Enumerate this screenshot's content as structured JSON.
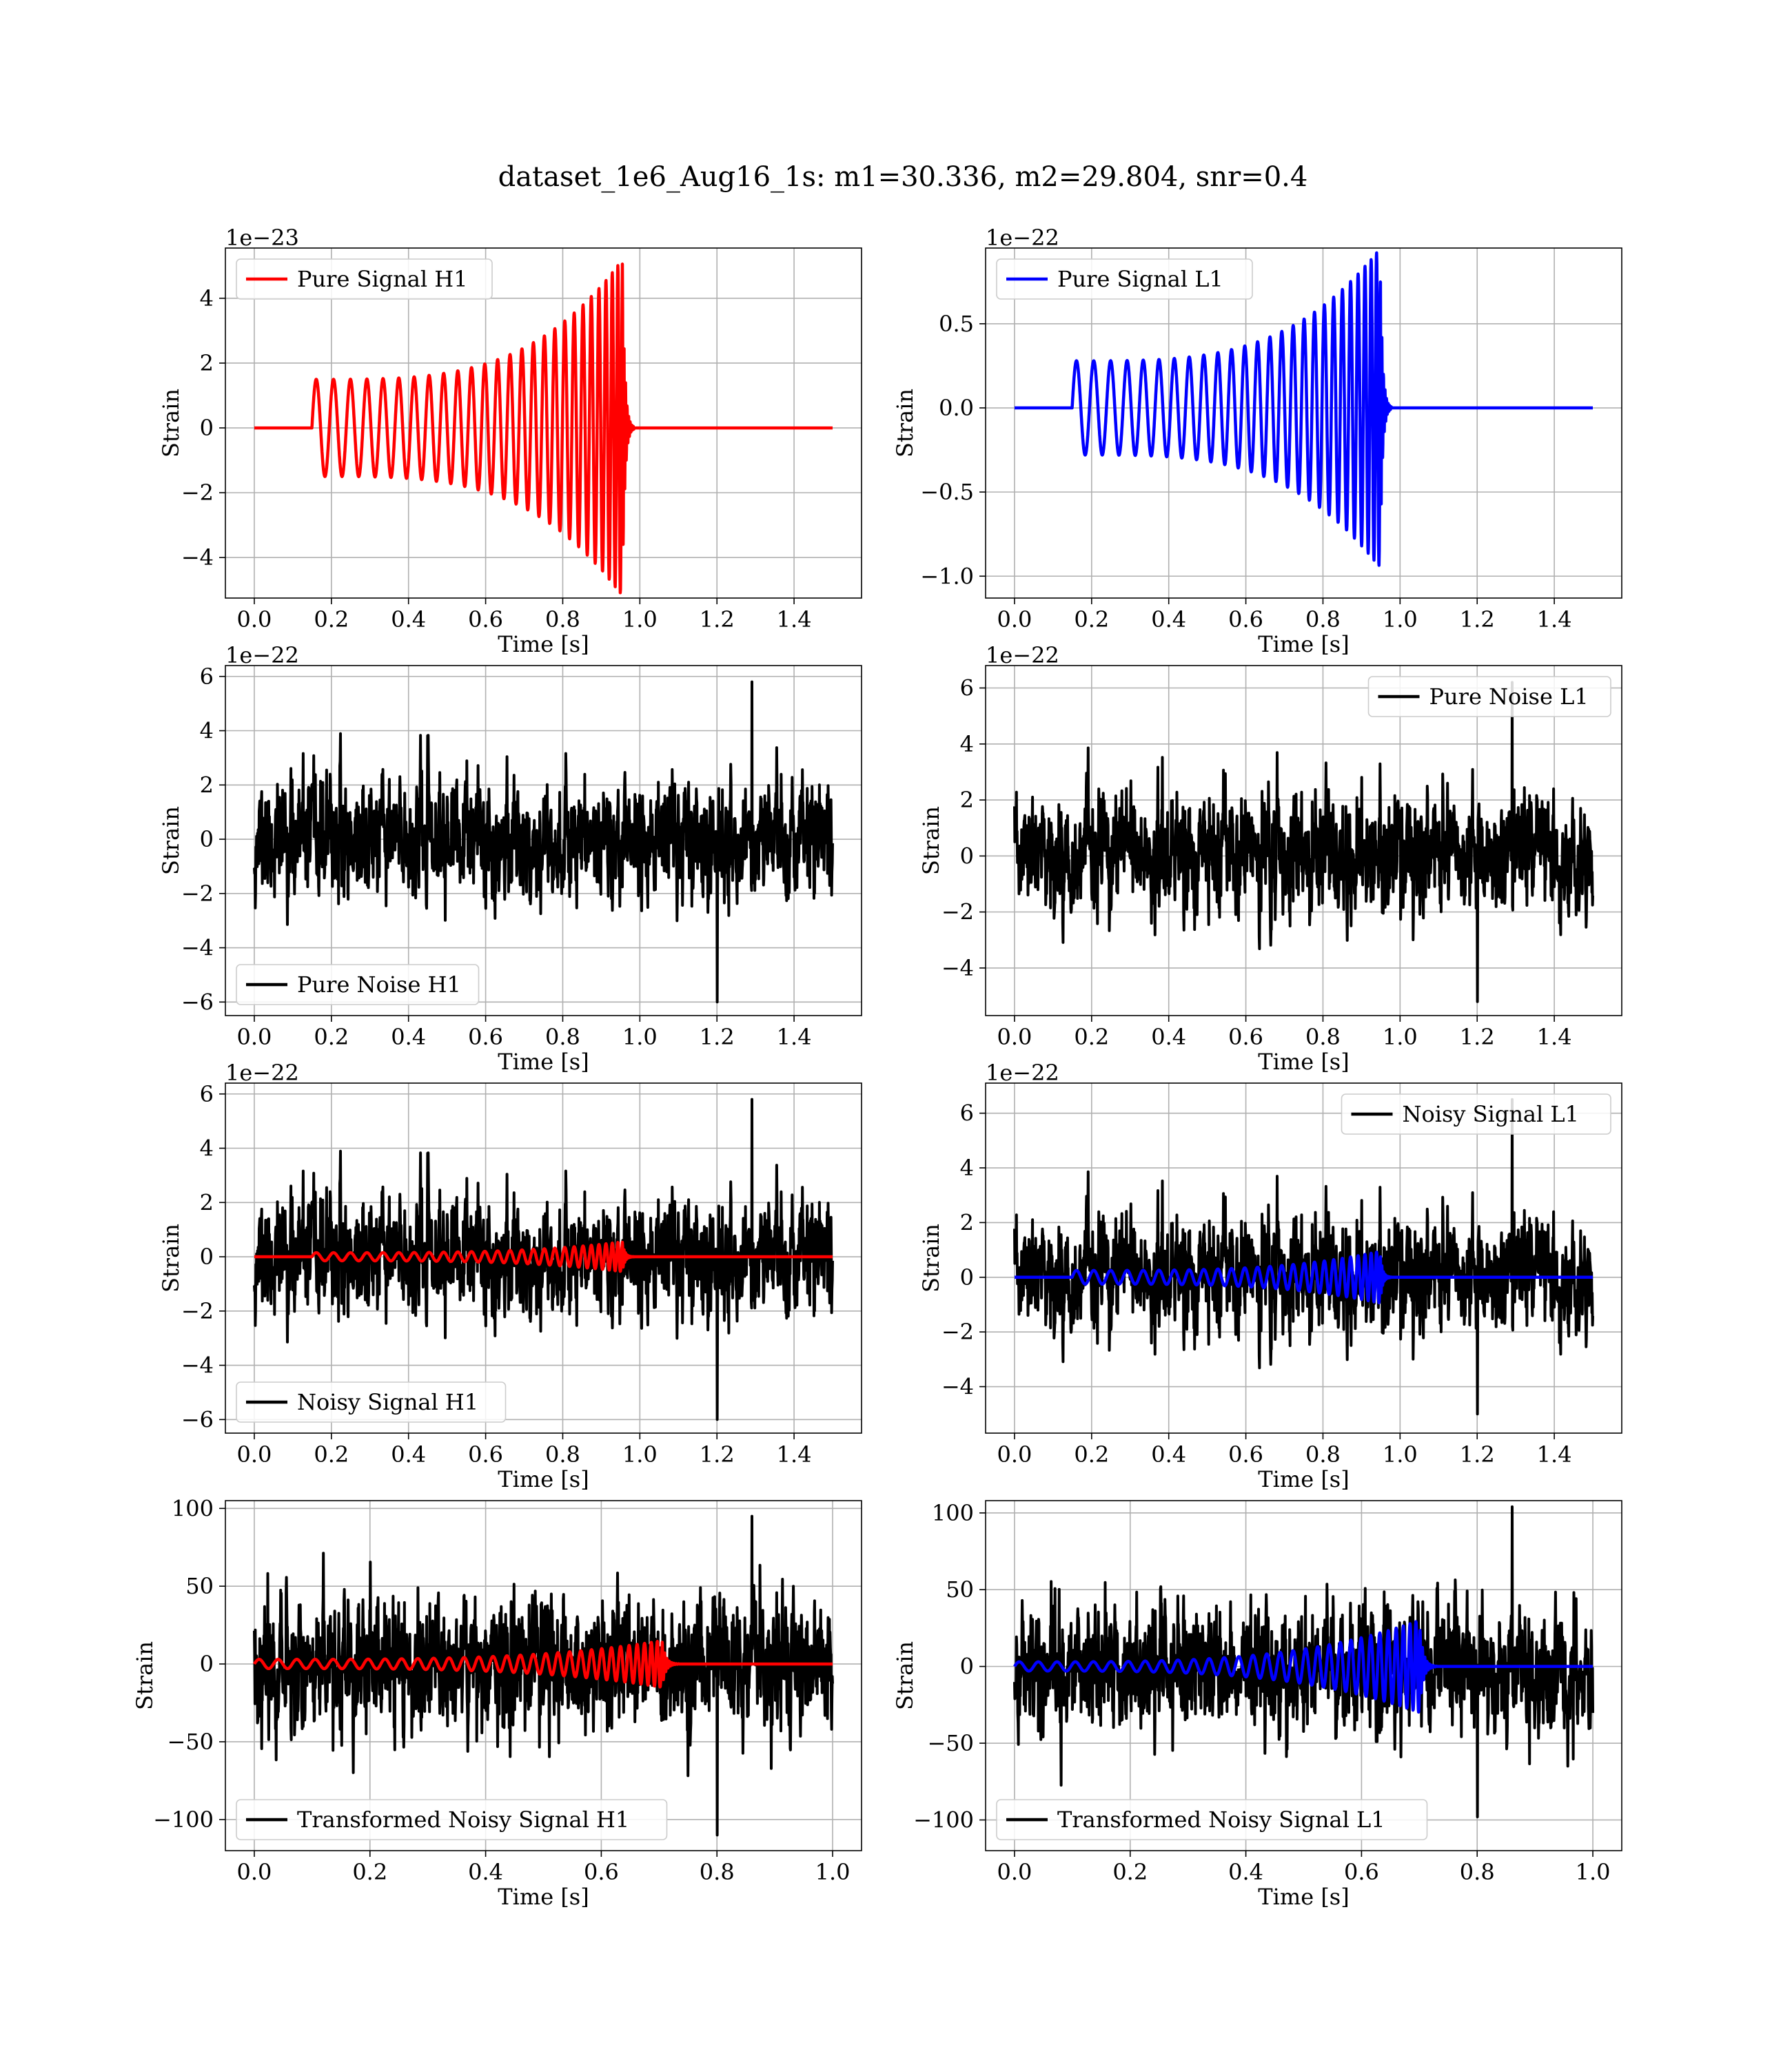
{
  "figure": {
    "suptitle": "dataset_1e6_Aug16_1s: m1=30.336, m2=29.804, snr=0.4"
  },
  "colors": {
    "h1": "#ff0000",
    "l1": "#0000ff",
    "noise": "#000000",
    "grid": "#b0b0b0"
  },
  "chart_data": [
    {
      "id": "pure-signal-h1",
      "type": "line",
      "xlabel": "Time [s]",
      "ylabel": "Strain",
      "offset_text": "1e−23",
      "xlim": [
        -0.075,
        1.575
      ],
      "ylim": [
        -5.25,
        5.55
      ],
      "xticks": [
        0.0,
        0.2,
        0.4,
        0.6,
        0.8,
        1.0,
        1.2,
        1.4
      ],
      "xtick_labels": [
        "0.0",
        "0.2",
        "0.4",
        "0.6",
        "0.8",
        "1.0",
        "1.2",
        "1.4"
      ],
      "yticks": [
        -4,
        -2,
        0,
        2,
        4
      ],
      "ytick_labels": [
        "−4",
        "−2",
        "0",
        "2",
        "4"
      ],
      "grid": true,
      "legend_position": "upper-left",
      "series": [
        {
          "name": "Pure Signal H1",
          "color": "#ff0000",
          "kind": "chirp",
          "start": 0.15,
          "merger": 0.955,
          "end": 1.5,
          "duration": 1.5,
          "amp_start": 1.5,
          "amp_peak": 5.2,
          "freq_start": 22,
          "legend": true
        }
      ]
    },
    {
      "id": "pure-signal-l1",
      "type": "line",
      "xlabel": "Time [s]",
      "ylabel": "Strain",
      "offset_text": "1e−22",
      "xlim": [
        -0.075,
        1.575
      ],
      "ylim": [
        -1.13,
        0.95
      ],
      "xticks": [
        0.0,
        0.2,
        0.4,
        0.6,
        0.8,
        1.0,
        1.2,
        1.4
      ],
      "xtick_labels": [
        "0.0",
        "0.2",
        "0.4",
        "0.6",
        "0.8",
        "1.0",
        "1.2",
        "1.4"
      ],
      "yticks": [
        -1.0,
        -0.5,
        0.0,
        0.5
      ],
      "ytick_labels": [
        "−1.0",
        "−0.5",
        "0.0",
        "0.5"
      ],
      "grid": true,
      "legend_position": "upper-left",
      "series": [
        {
          "name": "Pure Signal L1",
          "color": "#0000ff",
          "kind": "chirp",
          "start": 0.15,
          "merger": 0.948,
          "end": 1.5,
          "duration": 1.5,
          "amp_start": 0.28,
          "amp_peak": 0.95,
          "freq_start": 22,
          "legend": true
        }
      ]
    },
    {
      "id": "pure-noise-h1",
      "type": "line",
      "xlabel": "Time [s]",
      "ylabel": "Strain",
      "offset_text": "1e−22",
      "xlim": [
        -0.075,
        1.575
      ],
      "ylim": [
        -6.5,
        6.4
      ],
      "xticks": [
        0.0,
        0.2,
        0.4,
        0.6,
        0.8,
        1.0,
        1.2,
        1.4
      ],
      "xtick_labels": [
        "0.0",
        "0.2",
        "0.4",
        "0.6",
        "0.8",
        "1.0",
        "1.2",
        "1.4"
      ],
      "yticks": [
        -6,
        -4,
        -2,
        0,
        2,
        4,
        6
      ],
      "ytick_labels": [
        "−6",
        "−4",
        "−2",
        "0",
        "2",
        "4",
        "6"
      ],
      "grid": true,
      "legend_position": "lower-left",
      "series": [
        {
          "name": "Pure Noise H1",
          "color": "#000000",
          "kind": "noise",
          "duration": 1.5,
          "sigma": 1.35,
          "peak": 5.8,
          "trough": -6.0,
          "seed": 11,
          "legend": true
        }
      ]
    },
    {
      "id": "pure-noise-l1",
      "type": "line",
      "xlabel": "Time [s]",
      "ylabel": "Strain",
      "offset_text": "1e−22",
      "xlim": [
        -0.075,
        1.575
      ],
      "ylim": [
        -5.7,
        6.8
      ],
      "xticks": [
        0.0,
        0.2,
        0.4,
        0.6,
        0.8,
        1.0,
        1.2,
        1.4
      ],
      "xtick_labels": [
        "0.0",
        "0.2",
        "0.4",
        "0.6",
        "0.8",
        "1.0",
        "1.2",
        "1.4"
      ],
      "yticks": [
        -4,
        -2,
        0,
        2,
        4,
        6
      ],
      "ytick_labels": [
        "−4",
        "−2",
        "0",
        "2",
        "4",
        "6"
      ],
      "grid": true,
      "legend_position": "upper-right",
      "series": [
        {
          "name": "Pure Noise L1",
          "color": "#000000",
          "kind": "noise",
          "duration": 1.5,
          "sigma": 1.3,
          "peak": 6.2,
          "trough": -5.2,
          "seed": 23,
          "legend": true
        }
      ]
    },
    {
      "id": "noisy-signal-h1",
      "type": "line",
      "xlabel": "Time [s]",
      "ylabel": "Strain",
      "offset_text": "1e−22",
      "xlim": [
        -0.075,
        1.575
      ],
      "ylim": [
        -6.5,
        6.4
      ],
      "xticks": [
        0.0,
        0.2,
        0.4,
        0.6,
        0.8,
        1.0,
        1.2,
        1.4
      ],
      "xtick_labels": [
        "0.0",
        "0.2",
        "0.4",
        "0.6",
        "0.8",
        "1.0",
        "1.2",
        "1.4"
      ],
      "yticks": [
        -6,
        -4,
        -2,
        0,
        2,
        4,
        6
      ],
      "ytick_labels": [
        "−6",
        "−4",
        "−2",
        "0",
        "2",
        "4",
        "6"
      ],
      "grid": true,
      "legend_position": "lower-left",
      "series": [
        {
          "name": "Noisy Signal H1",
          "color": "#000000",
          "kind": "noise",
          "duration": 1.5,
          "sigma": 1.35,
          "peak": 5.8,
          "trough": -6.0,
          "seed": 11,
          "legend": true
        },
        {
          "name": "",
          "color": "#ff0000",
          "kind": "chirp",
          "start": 0.15,
          "merger": 0.955,
          "end": 1.5,
          "duration": 1.5,
          "amp_start": 0.15,
          "amp_peak": 0.55,
          "freq_start": 22,
          "legend": false
        }
      ]
    },
    {
      "id": "noisy-signal-l1",
      "type": "line",
      "xlabel": "Time [s]",
      "ylabel": "Strain",
      "offset_text": "1e−22",
      "xlim": [
        -0.075,
        1.575
      ],
      "ylim": [
        -5.7,
        7.1
      ],
      "xticks": [
        0.0,
        0.2,
        0.4,
        0.6,
        0.8,
        1.0,
        1.2,
        1.4
      ],
      "xtick_labels": [
        "0.0",
        "0.2",
        "0.4",
        "0.6",
        "0.8",
        "1.0",
        "1.2",
        "1.4"
      ],
      "yticks": [
        -4,
        -2,
        0,
        2,
        4,
        6
      ],
      "ytick_labels": [
        "−4",
        "−2",
        "0",
        "2",
        "4",
        "6"
      ],
      "grid": true,
      "legend_position": "upper-right",
      "series": [
        {
          "name": "Noisy Signal L1",
          "color": "#000000",
          "kind": "noise",
          "duration": 1.5,
          "sigma": 1.3,
          "peak": 6.5,
          "trough": -5.0,
          "seed": 23,
          "legend": true
        },
        {
          "name": "",
          "color": "#0000ff",
          "kind": "chirp",
          "start": 0.15,
          "merger": 0.948,
          "end": 1.5,
          "duration": 1.5,
          "amp_start": 0.25,
          "amp_peak": 0.95,
          "freq_start": 22,
          "legend": false
        }
      ]
    },
    {
      "id": "transformed-noisy-signal-h1",
      "type": "line",
      "xlabel": "Time [s]",
      "ylabel": "Strain",
      "offset_text": "",
      "xlim": [
        -0.05,
        1.05
      ],
      "ylim": [
        -120,
        105
      ],
      "xticks": [
        0.0,
        0.2,
        0.4,
        0.6,
        0.8,
        1.0
      ],
      "xtick_labels": [
        "0.0",
        "0.2",
        "0.4",
        "0.6",
        "0.8",
        "1.0"
      ],
      "yticks": [
        -100,
        -50,
        0,
        50,
        100
      ],
      "ytick_labels": [
        "−100",
        "−50",
        "0",
        "50",
        "100"
      ],
      "grid": true,
      "legend_position": "lower-left",
      "series": [
        {
          "name": "Transformed Noisy Signal H1",
          "color": "#000000",
          "kind": "noise",
          "duration": 1.0,
          "sigma": 27,
          "peak": 95,
          "trough": -110,
          "seed": 37,
          "legend": true
        },
        {
          "name": "",
          "color": "#ff0000",
          "kind": "chirp",
          "start": 0.0,
          "merger": 0.705,
          "end": 1.0,
          "duration": 1.0,
          "amp_start": 3,
          "amp_peak": 15,
          "freq_start": 30,
          "legend": false
        }
      ]
    },
    {
      "id": "transformed-noisy-signal-l1",
      "type": "line",
      "xlabel": "Time [s]",
      "ylabel": "Strain",
      "offset_text": "",
      "xlim": [
        -0.05,
        1.05
      ],
      "ylim": [
        -120,
        108
      ],
      "xticks": [
        0.0,
        0.2,
        0.4,
        0.6,
        0.8,
        1.0
      ],
      "xtick_labels": [
        "0.0",
        "0.2",
        "0.4",
        "0.6",
        "0.8",
        "1.0"
      ],
      "yticks": [
        -100,
        -50,
        0,
        50,
        100
      ],
      "ytick_labels": [
        "−100",
        "−50",
        "0",
        "50",
        "100"
      ],
      "grid": true,
      "legend_position": "lower-left",
      "series": [
        {
          "name": "Transformed Noisy Signal L1",
          "color": "#000000",
          "kind": "noise",
          "duration": 1.0,
          "sigma": 26,
          "peak": 104,
          "trough": -98,
          "seed": 41,
          "legend": true
        },
        {
          "name": "",
          "color": "#0000ff",
          "kind": "chirp",
          "start": 0.0,
          "merger": 0.7,
          "end": 1.0,
          "duration": 1.0,
          "amp_start": 3,
          "amp_peak": 30,
          "freq_start": 30,
          "legend": false
        }
      ]
    }
  ]
}
